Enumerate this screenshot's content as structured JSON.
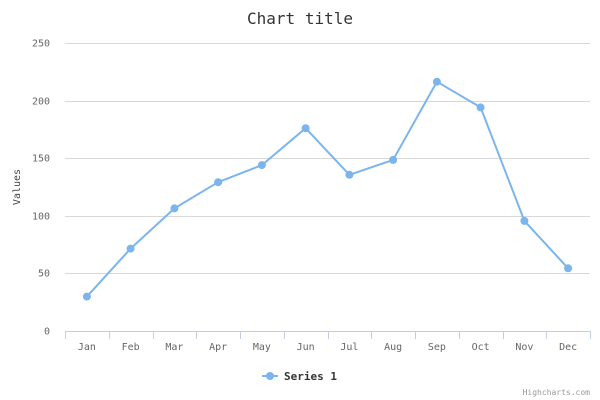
{
  "chart_data": {
    "type": "line",
    "title": "Chart title",
    "ylabel": "Values",
    "xlabel": "",
    "categories": [
      "Jan",
      "Feb",
      "Mar",
      "Apr",
      "May",
      "Jun",
      "Jul",
      "Aug",
      "Sep",
      "Oct",
      "Nov",
      "Dec"
    ],
    "series": [
      {
        "name": "Series 1",
        "values": [
          29.9,
          71.5,
          106.4,
          129.2,
          144.0,
          176.0,
          135.6,
          148.5,
          216.4,
          194.1,
          95.6,
          54.4
        ]
      }
    ],
    "ylim": [
      0,
      250
    ],
    "yticks": [
      0,
      50,
      100,
      150,
      200,
      250
    ],
    "grid": true,
    "legend_position": "bottom-center",
    "colors": {
      "series": "#7cb5ec",
      "grid": "#d8d8d8",
      "axis": "#c0d0e0"
    }
  },
  "credits": "Highcharts.com"
}
